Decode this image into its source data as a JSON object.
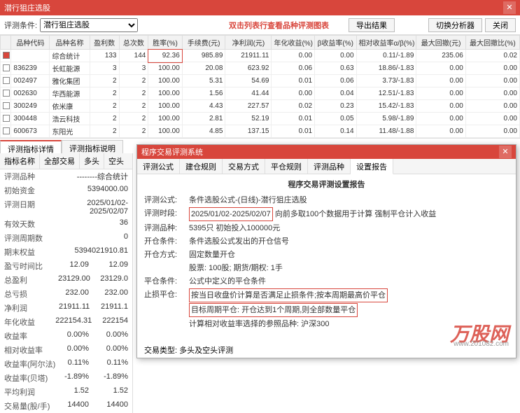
{
  "window": {
    "title": "潜行狙庄选股",
    "close": "✕"
  },
  "toolbar": {
    "label": "评测条件:",
    "selected": "潜行狙庄选股",
    "notice": "双击列表行查看品种评测图表",
    "btn_export": "导出结果",
    "btn_switch": "切换分析器",
    "btn_close": "关闭"
  },
  "grid": {
    "cols": [
      "",
      "品种代码",
      "品种名称",
      "盈利数",
      "总次数",
      "胜率(%)",
      "手续费(元)",
      "净利润(元)",
      "年化收益(%)",
      "β收益率(%)",
      "相对收益率α/β(%)",
      "最大回撤(元)",
      "最大回撤比(%)"
    ],
    "widths": [
      14,
      50,
      52,
      38,
      38,
      44,
      56,
      60,
      56,
      54,
      78,
      64,
      70
    ],
    "rows": [
      {
        "chk": true,
        "code": "",
        "name": "综合统计",
        "win": "133",
        "tot": "144",
        "rate": "92.36",
        "fee": "985.89",
        "profit": "21911.11",
        "yield": "0.00",
        "beta": "0.00",
        "alpha": "0.11/-1.89",
        "dd": "235.06",
        "ddr": "0.02"
      },
      {
        "chk": false,
        "code": "836239",
        "name": "长虹能源",
        "win": "3",
        "tot": "3",
        "rate": "100.00",
        "fee": "20.08",
        "profit": "623.92",
        "yield": "0.06",
        "beta": "0.63",
        "alpha": "18.86/-1.83",
        "dd": "0.00",
        "ddr": "0.00"
      },
      {
        "chk": false,
        "code": "002497",
        "name": "雅化集团",
        "win": "2",
        "tot": "2",
        "rate": "100.00",
        "fee": "5.31",
        "profit": "54.69",
        "yield": "0.01",
        "beta": "0.06",
        "alpha": "3.73/-1.83",
        "dd": "0.00",
        "ddr": "0.00"
      },
      {
        "chk": false,
        "code": "002630",
        "name": "华西能源",
        "win": "2",
        "tot": "2",
        "rate": "100.00",
        "fee": "1.56",
        "profit": "41.44",
        "yield": "0.00",
        "beta": "0.04",
        "alpha": "12.51/-1.83",
        "dd": "0.00",
        "ddr": "0.00"
      },
      {
        "chk": false,
        "code": "300249",
        "name": "依米康",
        "win": "2",
        "tot": "2",
        "rate": "100.00",
        "fee": "4.43",
        "profit": "227.57",
        "yield": "0.02",
        "beta": "0.23",
        "alpha": "15.42/-1.83",
        "dd": "0.00",
        "ddr": "0.00"
      },
      {
        "chk": false,
        "code": "300448",
        "name": "浩云科技",
        "win": "2",
        "tot": "2",
        "rate": "100.00",
        "fee": "2.81",
        "profit": "52.19",
        "yield": "0.01",
        "beta": "0.05",
        "alpha": "5.98/-1.89",
        "dd": "0.00",
        "ddr": "0.00"
      },
      {
        "chk": false,
        "code": "600673",
        "name": "东阳光",
        "win": "2",
        "tot": "2",
        "rate": "100.00",
        "fee": "4.85",
        "profit": "137.15",
        "yield": "0.01",
        "beta": "0.14",
        "alpha": "11.48/-1.88",
        "dd": "0.00",
        "ddr": "0.00"
      }
    ]
  },
  "lower_tabs": {
    "t1": "评测指标详情",
    "t2": "评测指标说明"
  },
  "left": {
    "subtabs": [
      "指标名称",
      "全部交易",
      "多头",
      "空头"
    ],
    "rows": [
      {
        "k": "评测品种",
        "v": "--------综合统计"
      },
      {
        "k": "初始资金",
        "v": "5394000.00"
      },
      {
        "k": "评测日期",
        "v": "2025/01/02-2025/02/07"
      },
      {
        "k": "有效天数",
        "v": "36"
      },
      {
        "k": "评测周期数",
        "v": "0"
      },
      {
        "k": "期末权益",
        "v": "5394021910.81"
      },
      {
        "k": "盈亏时间比",
        "v": "12.09",
        "v2": "12.09"
      },
      {
        "k": "总盈利",
        "v": "23129.00",
        "v2": "23129.0"
      },
      {
        "k": "总亏损",
        "v": "232.00",
        "v2": "232.00"
      },
      {
        "k": "净利润",
        "v": "21911.11",
        "v2": "21911.1"
      },
      {
        "k": "年化收益",
        "v": "222154.31",
        "v2": "222154"
      },
      {
        "k": "收益率",
        "v": "0.00%",
        "v2": "0.00%"
      },
      {
        "k": "相对收益率",
        "v": "0.00%",
        "v2": "0.00%"
      },
      {
        "k": "收益率(阿尔法)",
        "v": "0.11%",
        "v2": "0.11%"
      },
      {
        "k": "收益率(贝塔)",
        "v": "-1.89%",
        "v2": "-1.89%"
      },
      {
        "k": "平均利润",
        "v": "1.52",
        "v2": "1.52"
      },
      {
        "k": "交易量(股/手)",
        "v": "14400",
        "v2": "14400"
      }
    ]
  },
  "overlay": {
    "title": "程序交易评测系统",
    "tabs": [
      "评测公式",
      "建仓规则",
      "交易方式",
      "平仓规则",
      "评测品种",
      "设置报告"
    ],
    "active_tab": 5,
    "heading": "程序交易评测设置报告",
    "lines": [
      {
        "k": "评测公式:",
        "v": "条件选股公式-(日线)-潜行狙庄选股"
      },
      {
        "k": "评测时段:",
        "v": "2025/01/02-2025/02/07",
        "vbox": true,
        "suffix": " 向前多取100个数据用于计算 强制平仓计入收益"
      },
      {
        "k": "评测品种:",
        "v": "5395只 初始投入100000元"
      },
      {
        "k": "开仓条件:",
        "v": "条件选股公式发出的开仓信号"
      },
      {
        "k": "开仓方式:",
        "v": "固定数量开仓"
      },
      {
        "k": "",
        "v": "股票: 100股; 期货/期权: 1手"
      },
      {
        "k": "平仓条件:",
        "v": "公式中定义的平仓条件"
      },
      {
        "k": "止损平仓:",
        "v": "按当日收盘价计算是否满足止损条件;按本周期最高价平仓",
        "vbox": true
      },
      {
        "k": "",
        "v": "目标周期平仓: 开仓达到1个周期,则全部数量平仓",
        "vbox": true
      },
      {
        "k": "",
        "v": "计算相对收益率选择的参照品种: 沪深300"
      }
    ],
    "footer": "交易类型: 多头及空头评测"
  },
  "watermark": {
    "brand": "万股网",
    "url": "www.201082.com"
  }
}
